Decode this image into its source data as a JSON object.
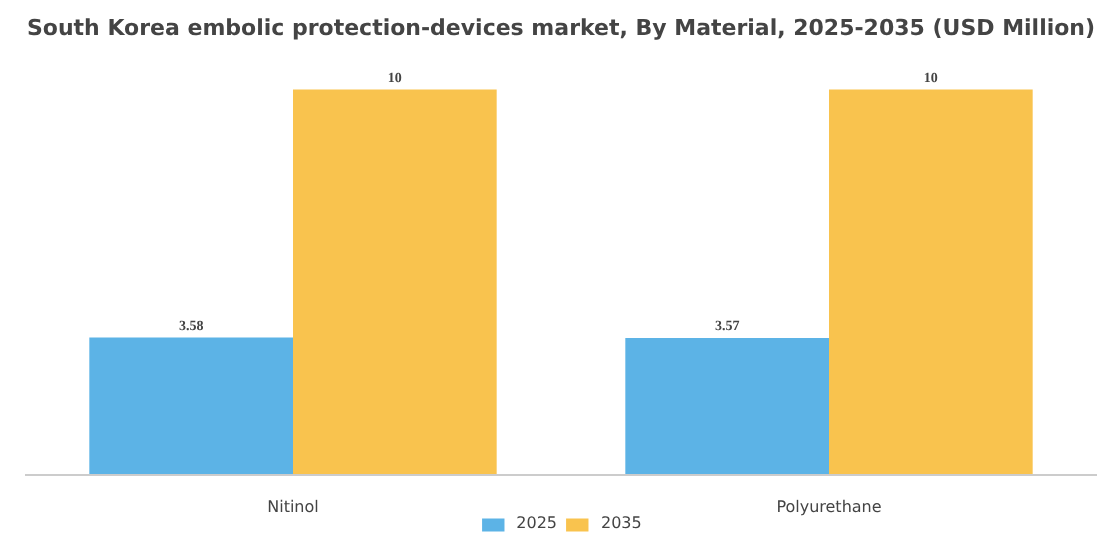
{
  "chart_data": {
    "type": "bar",
    "title": "South Korea embolic protection-devices market, By Material, 2025-2035 (USD Million)",
    "categories": [
      "Nitinol",
      "Polyurethane"
    ],
    "series": [
      {
        "name": "2025",
        "color": "#5cb3e6",
        "values": [
          3.58,
          3.57
        ]
      },
      {
        "name": "2035",
        "color": "#f9c34e",
        "values": [
          10,
          10
        ]
      }
    ],
    "data_labels": true,
    "legend": "bottom"
  }
}
